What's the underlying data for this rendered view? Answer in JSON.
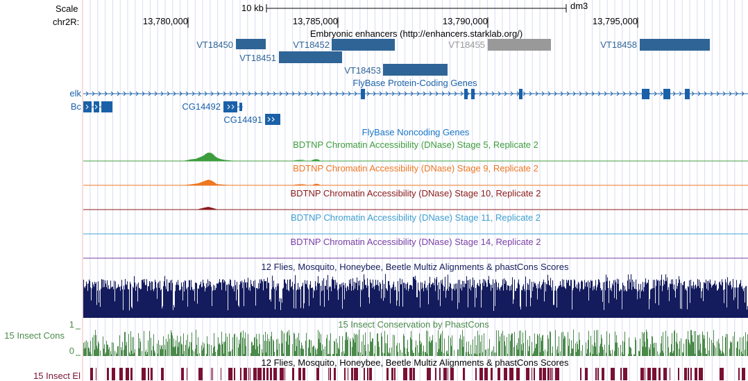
{
  "header": {
    "scale_label": "Scale",
    "chrom_label": "chr2R:",
    "scale_bar_text": "10 kb",
    "assembly": "dm3",
    "coordinates": [
      "13,780,000",
      "13,785,000",
      "13,790,000",
      "13,795,000"
    ]
  },
  "tracks": {
    "enhancers": {
      "title": "Embryonic enhancers (http://enhancers.starklab.org/)",
      "items": [
        {
          "name": "VT18450",
          "color": "#2f6496"
        },
        {
          "name": "VT18452",
          "color": "#2f6496"
        },
        {
          "name": "VT18451",
          "color": "#2f6496"
        },
        {
          "name": "VT18455",
          "color": "#999999"
        },
        {
          "name": "VT18458",
          "color": "#2f6496"
        },
        {
          "name": "VT18453",
          "color": "#2f6496"
        }
      ]
    },
    "genes": {
      "title": "FlyBase Protein-Coding Genes",
      "color": "#1a61a8",
      "items": [
        "elk",
        "Bc",
        "CG14492",
        "CG14491"
      ]
    },
    "noncoding": {
      "title": "FlyBase Noncoding Genes",
      "color": "#1a76c7"
    },
    "dnase": [
      {
        "title": "BDTNP Chromatin Accessibility (DNase) Stage 5, Replicate 2",
        "color": "#3d9d3d"
      },
      {
        "title": "BDTNP Chromatin Accessibility (DNase) Stage 9, Replicate 2",
        "color": "#ee7722"
      },
      {
        "title": "BDTNP Chromatin Accessibility (DNase) Stage 10, Replicate 2",
        "color": "#8b1a1a"
      },
      {
        "title": "BDTNP Chromatin Accessibility (DNase) Stage 11, Replicate 2",
        "color": "#3fa0d0"
      },
      {
        "title": "BDTNP Chromatin Accessibility (DNase) Stage 14, Replicate 2",
        "color": "#7a3fa6"
      }
    ],
    "multiz": {
      "title": "12 Flies, Mosquito, Honeybee, Beetle Multiz Alignments & phastCons Scores",
      "color": "#141c5e"
    },
    "phastcons": {
      "title": "15 Insect Conservation by PhastCons",
      "side_label": "15 Insect Cons",
      "axis_max": "1",
      "axis_min": "0",
      "color": "#4a8a4a"
    },
    "elements": {
      "title": "12 Flies, Mosquito, Honeybee, Beetle Multiz Alignments & phastCons Scores",
      "side_label": "15 Insect El",
      "color": "#7a1033"
    }
  }
}
